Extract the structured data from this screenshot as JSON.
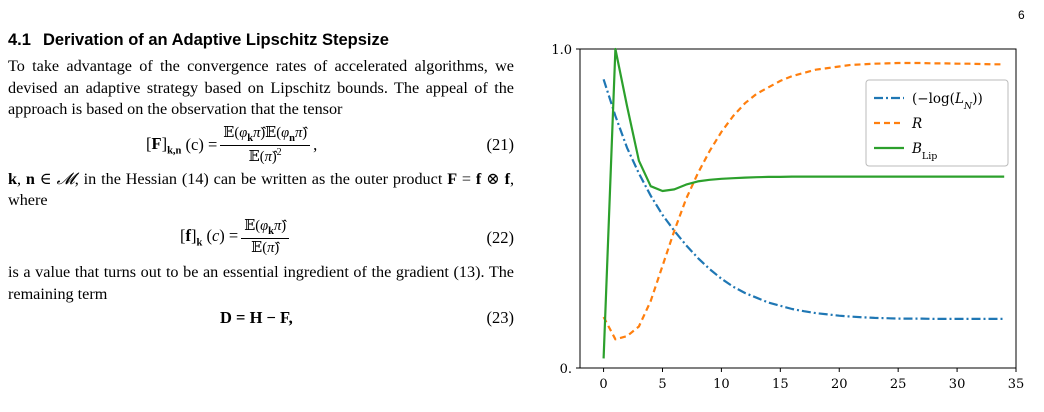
{
  "page_number": "6",
  "section": {
    "number": "4.1",
    "title": "Derivation of an Adaptive Lipschitz Stepsize"
  },
  "paragraph1": "To take advantage of the convergence rates of accelerated algorithms, we devised an adaptive strategy based on Lipschitz bounds. The appeal of the approach is based on the observation that the tensor",
  "eq21_tag": "(21)",
  "eq21_tail": "(c) =",
  "paragraph2a": ", in the Hessian (14) can be written as the outer product",
  "paragraph2b": ", where",
  "eq22_tag": "(22)",
  "paragraph3": "is a value that turns out to be an essential ingredient of the gradient (13). The remaining term",
  "eq23_tag": "(23)",
  "eq23_text": "D = H − F,",
  "chart_data": {
    "type": "line",
    "xlim": [
      -2,
      35
    ],
    "ylim": [
      0,
      1
    ],
    "x_ticks": [
      "0",
      "5",
      "10",
      "15",
      "20",
      "25",
      "30",
      "35"
    ],
    "y_ticks": [
      "0.",
      "1.0"
    ],
    "legend_position": "top-right",
    "grid": false,
    "series": [
      {
        "name": "(−log(L_N))",
        "style": "dash-dot",
        "color": "#1f77b4",
        "x": [
          0,
          1,
          2,
          3,
          4,
          5,
          6,
          7,
          8,
          9,
          10,
          11,
          12,
          13,
          14,
          15,
          16,
          17,
          18,
          19,
          20,
          21,
          22,
          23,
          24,
          25,
          26,
          27,
          28,
          29,
          30,
          31,
          32,
          33,
          34
        ],
        "y": [
          0.905,
          0.79,
          0.69,
          0.61,
          0.54,
          0.48,
          0.43,
          0.385,
          0.345,
          0.31,
          0.28,
          0.255,
          0.235,
          0.22,
          0.205,
          0.195,
          0.185,
          0.178,
          0.172,
          0.168,
          0.164,
          0.161,
          0.159,
          0.157,
          0.156,
          0.155,
          0.155,
          0.155,
          0.154,
          0.154,
          0.154,
          0.154,
          0.154,
          0.154,
          0.154
        ]
      },
      {
        "name": "R",
        "style": "dashed",
        "color": "#ff7f0e",
        "x": [
          0,
          1,
          2,
          3,
          4,
          5,
          6,
          7,
          8,
          9,
          10,
          11,
          12,
          13,
          14,
          15,
          16,
          17,
          18,
          19,
          20,
          21,
          22,
          23,
          24,
          25,
          26,
          27,
          28,
          29,
          30,
          31,
          32,
          33,
          34
        ],
        "y": [
          0.16,
          0.09,
          0.1,
          0.13,
          0.21,
          0.32,
          0.43,
          0.53,
          0.61,
          0.68,
          0.74,
          0.79,
          0.83,
          0.86,
          0.88,
          0.9,
          0.915,
          0.925,
          0.935,
          0.94,
          0.945,
          0.95,
          0.952,
          0.954,
          0.955,
          0.956,
          0.956,
          0.956,
          0.955,
          0.955,
          0.954,
          0.954,
          0.953,
          0.952,
          0.952
        ]
      },
      {
        "name": "B_Lip",
        "style": "solid",
        "color": "#2ca02c",
        "x": [
          0,
          1,
          2,
          3,
          4,
          5,
          6,
          7,
          8,
          9,
          10,
          11,
          12,
          13,
          14,
          15,
          16,
          17,
          18,
          19,
          20,
          21,
          22,
          23,
          24,
          25,
          26,
          27,
          28,
          29,
          30,
          31,
          32,
          33,
          34
        ],
        "y": [
          0.03,
          1.0,
          0.82,
          0.65,
          0.57,
          0.555,
          0.56,
          0.575,
          0.585,
          0.59,
          0.593,
          0.595,
          0.597,
          0.598,
          0.599,
          0.599,
          0.6,
          0.6,
          0.6,
          0.6,
          0.6,
          0.6,
          0.6,
          0.6,
          0.6,
          0.6,
          0.6,
          0.6,
          0.6,
          0.6,
          0.6,
          0.6,
          0.6,
          0.6,
          0.6
        ]
      }
    ]
  }
}
